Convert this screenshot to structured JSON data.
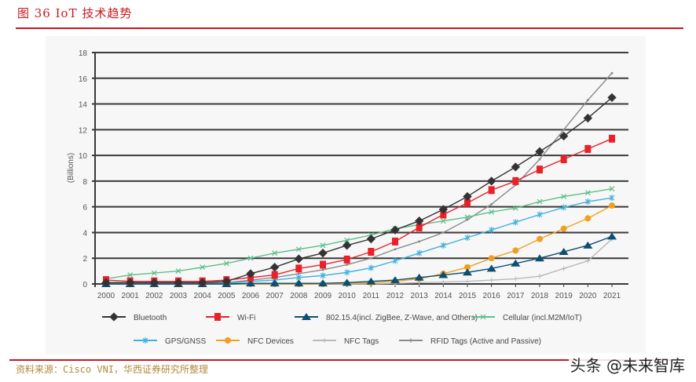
{
  "header": {
    "title": "图 36   IoT 技术趋势"
  },
  "footer": {
    "source": "资料来源：Cisco VNI，华西证券研究所整理",
    "watermark": "头条 @未来智库"
  },
  "chart_data": {
    "type": "line",
    "title": "",
    "xlabel": "",
    "ylabel": "(Billions)",
    "ylim": [
      0,
      18
    ],
    "yticks": [
      0,
      2,
      4,
      6,
      8,
      10,
      12,
      14,
      16,
      18
    ],
    "grid": true,
    "legend_placement": "bottom",
    "x": [
      "2000",
      "2001",
      "2002",
      "2003",
      "2004",
      "2005",
      "2006",
      "2007",
      "2008",
      "2009",
      "2010",
      "2011",
      "2012",
      "2013",
      "2014",
      "2015",
      "2016",
      "2017",
      "2018",
      "2019",
      "2020",
      "2021"
    ],
    "series": [
      {
        "name": "Bluetooth",
        "color": "#333333",
        "marker": "diamond",
        "values": [
          0.1,
          0.1,
          0.1,
          0.1,
          0.1,
          0.2,
          0.8,
          1.3,
          1.95,
          2.4,
          3.0,
          3.5,
          4.2,
          4.9,
          5.8,
          6.8,
          8.0,
          9.1,
          10.3,
          11.5,
          12.9,
          14.5
        ]
      },
      {
        "name": "Wi-Fi",
        "color": "#e8212b",
        "marker": "square",
        "values": [
          0.3,
          0.2,
          0.2,
          0.2,
          0.2,
          0.3,
          0.5,
          0.7,
          1.2,
          1.5,
          1.9,
          2.5,
          3.3,
          4.4,
          5.4,
          6.3,
          7.3,
          8.0,
          8.9,
          9.7,
          10.5,
          11.3
        ]
      },
      {
        "name": "802.15.4(incl. ZigBee, Z-Wave, and Others)",
        "color": "#0d4f72",
        "marker": "triangle",
        "values": [
          0,
          0,
          0,
          0,
          0,
          0,
          0.05,
          0.05,
          0.05,
          0.05,
          0.1,
          0.2,
          0.3,
          0.5,
          0.7,
          0.9,
          1.2,
          1.6,
          2.0,
          2.5,
          3.0,
          3.7
        ]
      },
      {
        "name": "Cellular (incl.M2M/IoT)",
        "color": "#5cbf8a",
        "marker": "x",
        "values": [
          0.4,
          0.7,
          0.85,
          1.0,
          1.3,
          1.6,
          2.0,
          2.4,
          2.7,
          3.0,
          3.4,
          3.8,
          4.3,
          4.6,
          4.9,
          5.2,
          5.6,
          5.9,
          6.4,
          6.8,
          7.1,
          7.4
        ]
      },
      {
        "name": "GPS/GNSS",
        "color": "#3fb0e0",
        "marker": "star",
        "values": [
          0,
          0,
          0,
          0,
          0,
          0.05,
          0.2,
          0.3,
          0.5,
          0.65,
          0.9,
          1.25,
          1.8,
          2.4,
          3.0,
          3.6,
          4.2,
          4.8,
          5.4,
          5.95,
          6.4,
          6.7
        ]
      },
      {
        "name": "NFC Devices",
        "color": "#f0a020",
        "marker": "circle",
        "values": [
          0,
          0,
          0,
          0,
          0,
          0,
          0,
          0,
          0,
          0,
          0.05,
          0.1,
          0.2,
          0.4,
          0.8,
          1.3,
          2.0,
          2.6,
          3.5,
          4.3,
          5.1,
          6.1
        ]
      },
      {
        "name": "NFC Tags",
        "color": "#b8b8b8",
        "marker": "plus",
        "values": [
          0,
          0,
          0,
          0,
          0,
          0,
          0,
          0,
          0,
          0,
          0,
          0,
          0.05,
          0.1,
          0.15,
          0.2,
          0.3,
          0.4,
          0.6,
          1.2,
          1.8,
          3.5
        ]
      },
      {
        "name": "RFID Tags (Active and Passive)",
        "color": "#8a8a8a",
        "marker": "dot",
        "values": [
          0.05,
          0.05,
          0.05,
          0.05,
          0.05,
          0.1,
          0.3,
          0.5,
          0.8,
          1.1,
          1.5,
          2.0,
          2.7,
          3.3,
          4.0,
          5.0,
          6.2,
          7.7,
          9.7,
          12.0,
          14.3,
          16.4
        ]
      }
    ]
  }
}
